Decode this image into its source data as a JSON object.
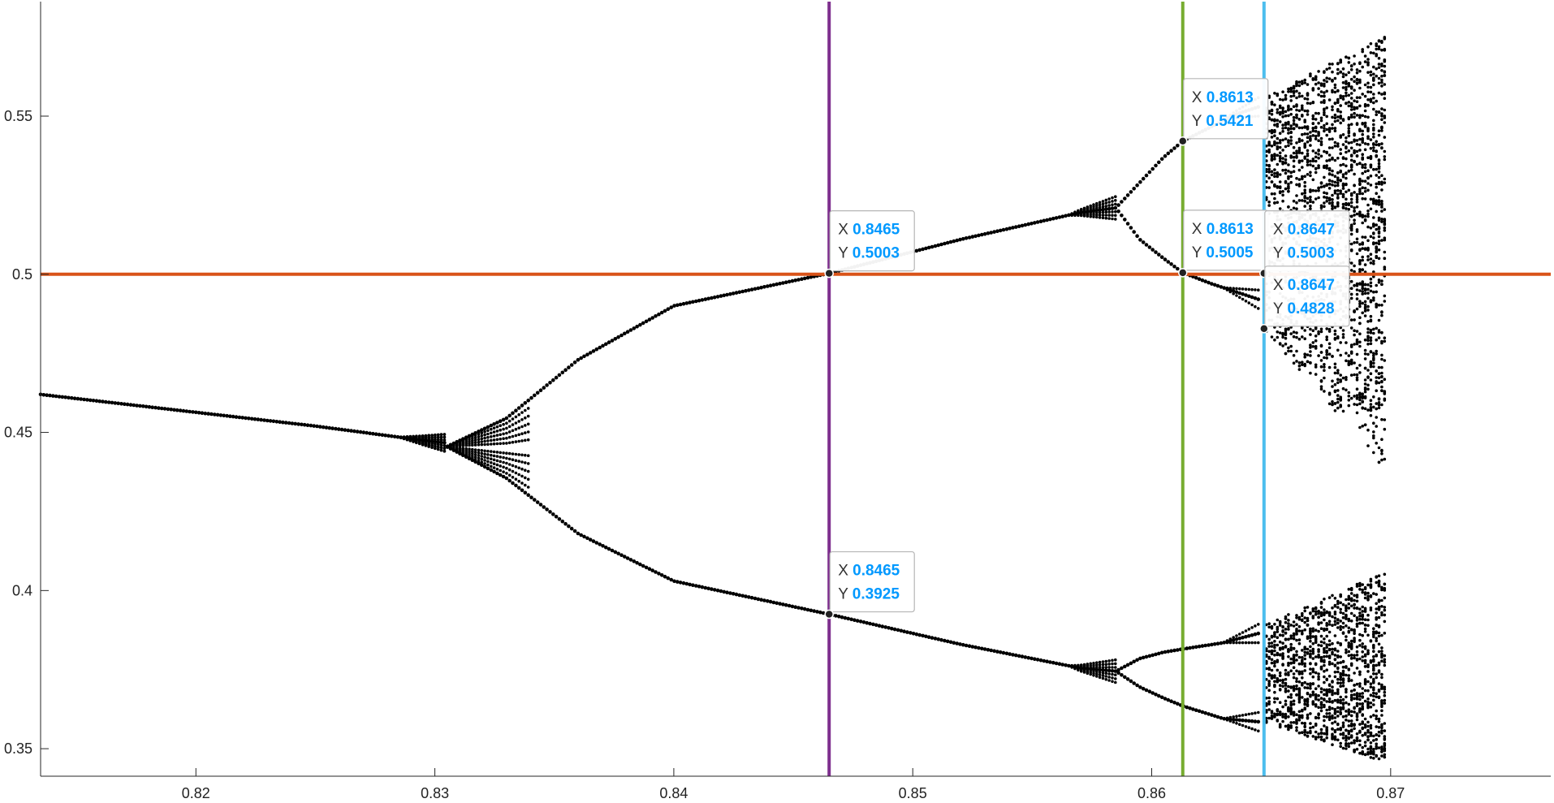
{
  "chart_data": {
    "type": "scatter",
    "title": "",
    "xlabel": "",
    "ylabel": "",
    "xlim": [
      0.8135,
      0.8767
    ],
    "ylim": [
      0.3413,
      0.5862
    ],
    "grid": false,
    "legend": "none",
    "x_ticks": [
      {
        "value": 0.82,
        "label": "0.82"
      },
      {
        "value": 0.83,
        "label": "0.83"
      },
      {
        "value": 0.84,
        "label": "0.84"
      },
      {
        "value": 0.85,
        "label": "0.85"
      },
      {
        "value": 0.86,
        "label": "0.86"
      },
      {
        "value": 0.87,
        "label": "0.87"
      }
    ],
    "y_ticks": [
      {
        "value": 0.35,
        "label": "0.35"
      },
      {
        "value": 0.4,
        "label": "0.4"
      },
      {
        "value": 0.45,
        "label": "0.45"
      },
      {
        "value": 0.5,
        "label": "0.5"
      },
      {
        "value": 0.55,
        "label": "0.55"
      }
    ],
    "point_color": "#000000",
    "bifurcation_series": {
      "name": "",
      "x_range": [
        0.8135,
        0.8698
      ],
      "stable_branch": [
        {
          "x": 0.8135,
          "y": 0.462
        },
        {
          "x": 0.825,
          "y": 0.452
        },
        {
          "x": 0.8295,
          "y": 0.4475
        }
      ],
      "period2_upper": [
        {
          "x": 0.833,
          "y": 0.4545
        },
        {
          "x": 0.836,
          "y": 0.473
        },
        {
          "x": 0.84,
          "y": 0.49
        },
        {
          "x": 0.8465,
          "y": 0.5003
        },
        {
          "x": 0.852,
          "y": 0.511
        },
        {
          "x": 0.8575,
          "y": 0.52
        }
      ],
      "period2_lower": [
        {
          "x": 0.833,
          "y": 0.4355
        },
        {
          "x": 0.836,
          "y": 0.418
        },
        {
          "x": 0.84,
          "y": 0.403
        },
        {
          "x": 0.8465,
          "y": 0.3925
        },
        {
          "x": 0.852,
          "y": 0.383
        },
        {
          "x": 0.8575,
          "y": 0.375
        }
      ],
      "period4": [
        {
          "x": 0.8613,
          "y": 0.5421
        },
        {
          "x": 0.8613,
          "y": 0.5005
        },
        {
          "x": 0.8613,
          "y": 0.3815
        },
        {
          "x": 0.8613,
          "y": 0.3635
        }
      ],
      "chaos_envelope": [
        {
          "x": 0.8647,
          "upper_max": 0.556,
          "upper_min": 0.4828,
          "lower_max": 0.389,
          "lower_min": 0.3585
        },
        {
          "x": 0.8698,
          "upper_max": 0.5755,
          "upper_min": 0.438,
          "lower_max": 0.406,
          "lower_min": 0.3455
        }
      ]
    },
    "reference_lines": [
      {
        "orientation": "horizontal",
        "value": 0.5,
        "color": "#D95319"
      },
      {
        "orientation": "vertical",
        "value": 0.8465,
        "color": "#7E2F8E"
      },
      {
        "orientation": "vertical",
        "value": 0.8613,
        "color": "#77AC30"
      },
      {
        "orientation": "vertical",
        "value": 0.8647,
        "color": "#4DBEEE"
      }
    ],
    "data_tips": [
      {
        "x": 0.8465,
        "y": 0.5003,
        "x_label": "X",
        "y_label": "Y",
        "x_text": "0.8465",
        "y_text": "0.5003"
      },
      {
        "x": 0.8465,
        "y": 0.3925,
        "x_label": "X",
        "y_label": "Y",
        "x_text": "0.8465",
        "y_text": "0.3925"
      },
      {
        "x": 0.8613,
        "y": 0.5421,
        "x_label": "X",
        "y_label": "Y",
        "x_text": "0.8613",
        "y_text": "0.5421"
      },
      {
        "x": 0.8613,
        "y": 0.5005,
        "x_label": "X",
        "y_label": "Y",
        "x_text": "0.8613",
        "y_text": "0.5005"
      },
      {
        "x": 0.8647,
        "y": 0.5003,
        "x_label": "X",
        "y_label": "Y",
        "x_text": "0.8647",
        "y_text": "0.5003"
      },
      {
        "x": 0.8647,
        "y": 0.4828,
        "x_label": "X",
        "y_label": "Y",
        "x_text": "0.8647",
        "y_text": "0.4828"
      }
    ],
    "tip_value_color": "#0099FF"
  }
}
